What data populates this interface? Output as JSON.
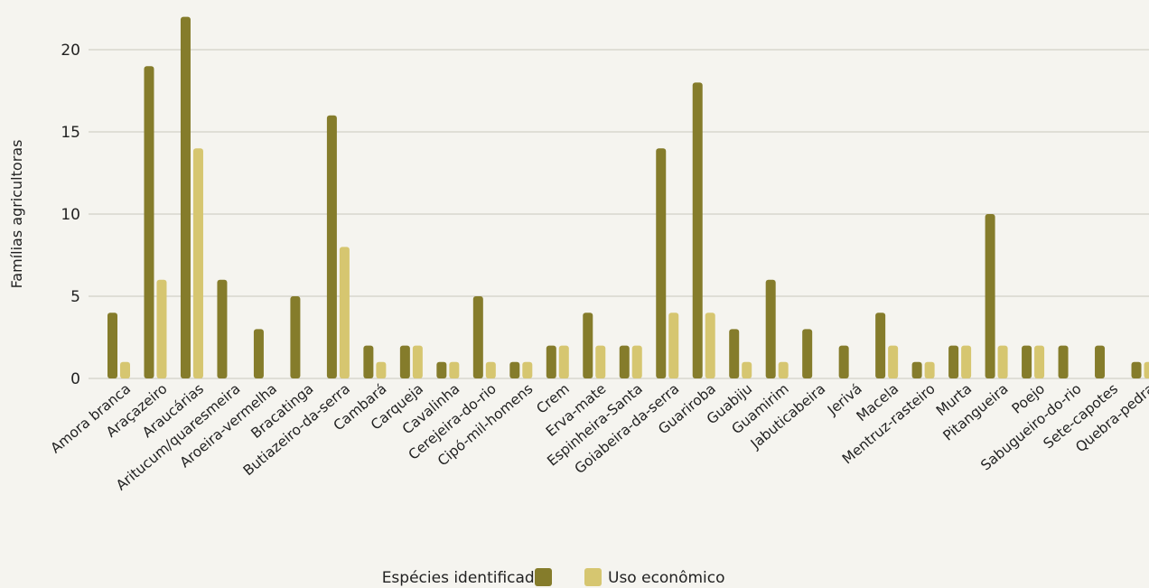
{
  "chart_data": {
    "type": "bar",
    "ylabel": "Famílias agricultoras",
    "ylim": [
      0,
      22
    ],
    "yticks": [
      0,
      5,
      10,
      15,
      20
    ],
    "grid": true,
    "legend_position": "bottom-center",
    "categories": [
      "Amora branca",
      "Araçazeiro",
      "Araucárias",
      "Aritucum/quaresmeira",
      "Aroeira-vermelha",
      "Bracatinga",
      "Butiazeiro-da-serra",
      "Cambará",
      "Carqueja",
      "Cavalinha",
      "Cerejeira-do-rio",
      "Cipó-mil-homens",
      "Crem",
      "Erva-mate",
      "Espinheira-Santa",
      "Goiabeira-da-serra",
      "Guariroba",
      "Guabiju",
      "Guamirim",
      "Jabuticabeira",
      "Jerivá",
      "Macela",
      "Mentruz-rasteiro",
      "Murta",
      "Pitangueira",
      "Poejo",
      "Sabugueiro-do-rio",
      "Sete-capotes",
      "Quebra-pedra"
    ],
    "series": [
      {
        "name": "Espécies identificadas",
        "color": "#857c2b",
        "values": [
          4,
          19,
          22,
          6,
          3,
          5,
          16,
          2,
          2,
          1,
          5,
          1,
          2,
          4,
          2,
          14,
          18,
          3,
          6,
          3,
          2,
          4,
          1,
          2,
          10,
          2,
          2,
          2,
          1
        ]
      },
      {
        "name": "Uso econômico",
        "color": "#d6c670",
        "values": [
          1,
          6,
          14,
          0,
          0,
          0,
          8,
          1,
          2,
          1,
          1,
          1,
          2,
          2,
          2,
          4,
          4,
          1,
          1,
          0,
          0,
          2,
          1,
          2,
          2,
          2,
          0,
          0,
          1
        ]
      }
    ]
  }
}
